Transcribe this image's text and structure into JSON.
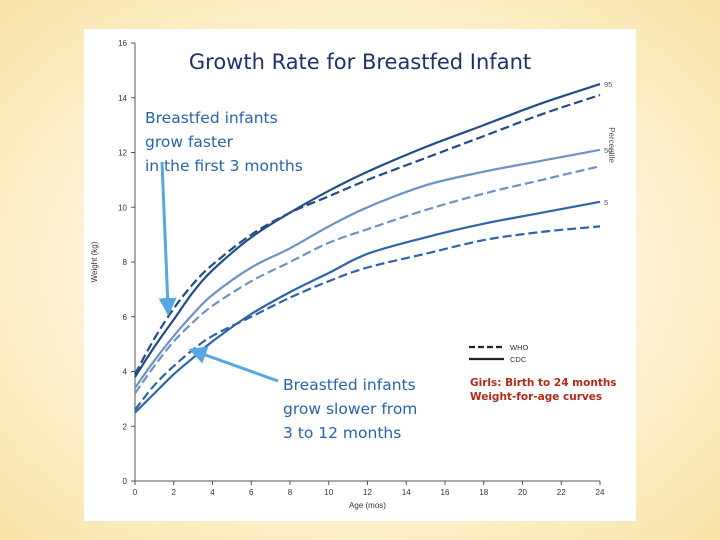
{
  "slide": {
    "title": "Growth Rate for Breastfed Infant",
    "annotation_faster": "Breastfed infants\ngrow faster\nin the first 3 months",
    "annotation_slower": "Breastfed infants\ngrow slower from\n3 to 12 months",
    "chart_caption_line1": "Girls: Birth to 24 months",
    "chart_caption_line2": "Weight-for-age curves"
  },
  "colors": {
    "curve": "#244d86",
    "arrow": "#5aa6e3",
    "title": "#1f3169",
    "annotation": "#2a63a8",
    "caption": "#b02a1c"
  },
  "chart_data": {
    "type": "line",
    "title": "",
    "xlabel": "Age (mos)",
    "ylabel": "Weight (kg)",
    "xlim": [
      0,
      24
    ],
    "ylim": [
      0,
      16
    ],
    "x_ticks": [
      0,
      2,
      4,
      6,
      8,
      10,
      12,
      14,
      16,
      18,
      20,
      22,
      24
    ],
    "y_ticks": [
      0,
      2,
      4,
      6,
      8,
      10,
      12,
      14,
      16
    ],
    "percentile_axis_label": "Percentile",
    "percentile_labels": [
      "95",
      "50",
      "5"
    ],
    "legend": {
      "position": "right",
      "entries": [
        {
          "name": "WHO",
          "style": "dashed"
        },
        {
          "name": "CDC",
          "style": "solid"
        }
      ]
    },
    "grid": false,
    "x": [
      0,
      1,
      2,
      3,
      4,
      6,
      8,
      10,
      12,
      15,
      18,
      21,
      24
    ],
    "series": [
      {
        "source": "WHO",
        "percentile": "95",
        "dashed": true,
        "values": [
          3.9,
          5.2,
          6.3,
          7.2,
          7.9,
          9.0,
          9.8,
          10.4,
          11.0,
          11.8,
          12.6,
          13.4,
          14.1
        ]
      },
      {
        "source": "CDC",
        "percentile": "95",
        "dashed": false,
        "values": [
          3.8,
          4.9,
          5.9,
          6.9,
          7.7,
          8.9,
          9.8,
          10.6,
          11.3,
          12.2,
          13.0,
          13.8,
          14.5
        ]
      },
      {
        "source": "WHO",
        "percentile": "50",
        "dashed": true,
        "values": [
          3.2,
          4.2,
          5.1,
          5.8,
          6.4,
          7.3,
          8.0,
          8.7,
          9.2,
          9.9,
          10.5,
          11.0,
          11.5
        ]
      },
      {
        "source": "CDC",
        "percentile": "50",
        "dashed": false,
        "values": [
          3.4,
          4.4,
          5.3,
          6.1,
          6.8,
          7.8,
          8.5,
          9.3,
          10.0,
          10.8,
          11.3,
          11.7,
          12.1
        ]
      },
      {
        "source": "WHO",
        "percentile": "5",
        "dashed": true,
        "values": [
          2.6,
          3.5,
          4.2,
          4.8,
          5.3,
          6.0,
          6.7,
          7.3,
          7.8,
          8.3,
          8.8,
          9.1,
          9.3
        ]
      },
      {
        "source": "CDC",
        "percentile": "5",
        "dashed": false,
        "values": [
          2.5,
          3.2,
          3.9,
          4.5,
          5.1,
          6.1,
          6.9,
          7.6,
          8.3,
          8.9,
          9.4,
          9.8,
          10.2
        ]
      }
    ]
  }
}
